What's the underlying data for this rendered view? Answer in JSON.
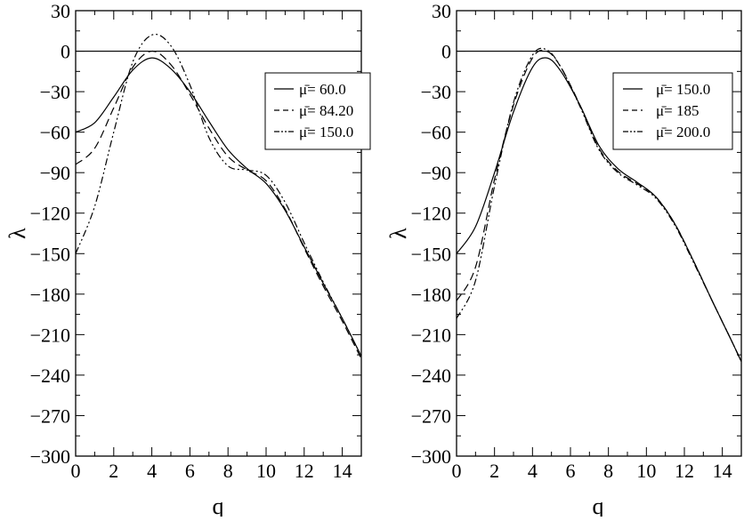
{
  "chart_data": [
    {
      "type": "line",
      "xlabel": "q",
      "ylabel": "λ",
      "xlim": [
        0,
        15
      ],
      "ylim": [
        -300,
        30
      ],
      "xticks": [
        0,
        2,
        4,
        6,
        8,
        10,
        12,
        14
      ],
      "yticks": [
        30,
        0,
        -30,
        -60,
        -90,
        -120,
        -150,
        -180,
        -210,
        -240,
        -270,
        -300
      ],
      "x_tick_labels": [
        "0",
        "2",
        "4",
        "6",
        "8",
        "10",
        "12",
        "14"
      ],
      "y_tick_labels": [
        "30",
        "0",
        "−30",
        "−60",
        "−90",
        "−120",
        "−150",
        "−180",
        "−210",
        "−240",
        "−270",
        "−300"
      ],
      "reference_line": 0,
      "grid": false,
      "legend_position": "top-right",
      "series": [
        {
          "name": "μ̄= 60.0",
          "style": "solid",
          "x": [
            0,
            1,
            2,
            3,
            4,
            5,
            6,
            7,
            8,
            9,
            10,
            11,
            12,
            13,
            14,
            15
          ],
          "y": [
            -60,
            -53,
            -34,
            -14,
            -5,
            -13,
            -30,
            -52,
            -73,
            -87,
            -98,
            -118,
            -145,
            -172,
            -198,
            -226
          ]
        },
        {
          "name": "μ̄= 84.20",
          "style": "dashed",
          "x": [
            0,
            1,
            2,
            3,
            4,
            5,
            6,
            7,
            8,
            9,
            10,
            11,
            12,
            13,
            14,
            15
          ],
          "y": [
            -84,
            -72,
            -42,
            -12,
            0,
            -10,
            -32,
            -57,
            -78,
            -88,
            -96,
            -117,
            -146,
            -174,
            -200,
            -228
          ]
        },
        {
          "name": "μ̄= 150.0",
          "style": "dash-dot-dot",
          "x": [
            0,
            1,
            2,
            3,
            4,
            5,
            6,
            7,
            8,
            9,
            10,
            11,
            12,
            13,
            14,
            15
          ],
          "y": [
            -150,
            -115,
            -60,
            -8,
            12,
            4,
            -25,
            -64,
            -85,
            -88,
            -92,
            -112,
            -142,
            -171,
            -198,
            -226
          ]
        }
      ]
    },
    {
      "type": "line",
      "xlabel": "q",
      "ylabel": "λ",
      "xlim": [
        0,
        15
      ],
      "ylim": [
        -300,
        30
      ],
      "xticks": [
        0,
        2,
        4,
        6,
        8,
        10,
        12,
        14
      ],
      "yticks": [
        30,
        0,
        -30,
        -60,
        -90,
        -120,
        -150,
        -180,
        -210,
        -240,
        -270,
        -300
      ],
      "x_tick_labels": [
        "0",
        "2",
        "4",
        "6",
        "8",
        "10",
        "12",
        "14"
      ],
      "y_tick_labels": [
        "30",
        "0",
        "−30",
        "−60",
        "−90",
        "−120",
        "−150",
        "−180",
        "−210",
        "−240",
        "−270",
        "−300"
      ],
      "reference_line": 0,
      "grid": false,
      "legend_position": "top-right",
      "series": [
        {
          "name": "μ̄= 150.0",
          "style": "solid",
          "x": [
            0,
            1,
            2,
            3,
            4,
            4.75,
            5.5,
            6.5,
            7.5,
            8.5,
            9.5,
            10.5,
            11.5,
            12.5,
            13.5,
            14.5,
            15
          ],
          "y": [
            -150,
            -130,
            -90,
            -45,
            -12,
            -5,
            -15,
            -40,
            -70,
            -87,
            -97,
            -108,
            -128,
            -156,
            -186,
            -215,
            -230
          ]
        },
        {
          "name": "μ̄= 185",
          "style": "dashed",
          "x": [
            0,
            1,
            2,
            3,
            4,
            4.75,
            5.5,
            6.5,
            7.5,
            8.5,
            9.5,
            10.5,
            11.5,
            12.5,
            13.5,
            14.5,
            15
          ],
          "y": [
            -185,
            -160,
            -95,
            -40,
            -5,
            0,
            -12,
            -40,
            -72,
            -89,
            -98,
            -108,
            -128,
            -156,
            -186,
            -215,
            -230
          ]
        },
        {
          "name": "μ̄= 200.0",
          "style": "dash-dot-dot",
          "x": [
            0,
            1,
            2,
            3,
            4,
            4.75,
            5.5,
            6.5,
            7.5,
            8.5,
            9.5,
            10.5,
            11.5,
            12.5,
            13.5,
            14.5,
            15
          ],
          "y": [
            -198,
            -170,
            -100,
            -38,
            -3,
            1,
            -12,
            -41,
            -73,
            -90,
            -99,
            -109,
            -129,
            -157,
            -186,
            -215,
            -230
          ]
        }
      ]
    }
  ]
}
